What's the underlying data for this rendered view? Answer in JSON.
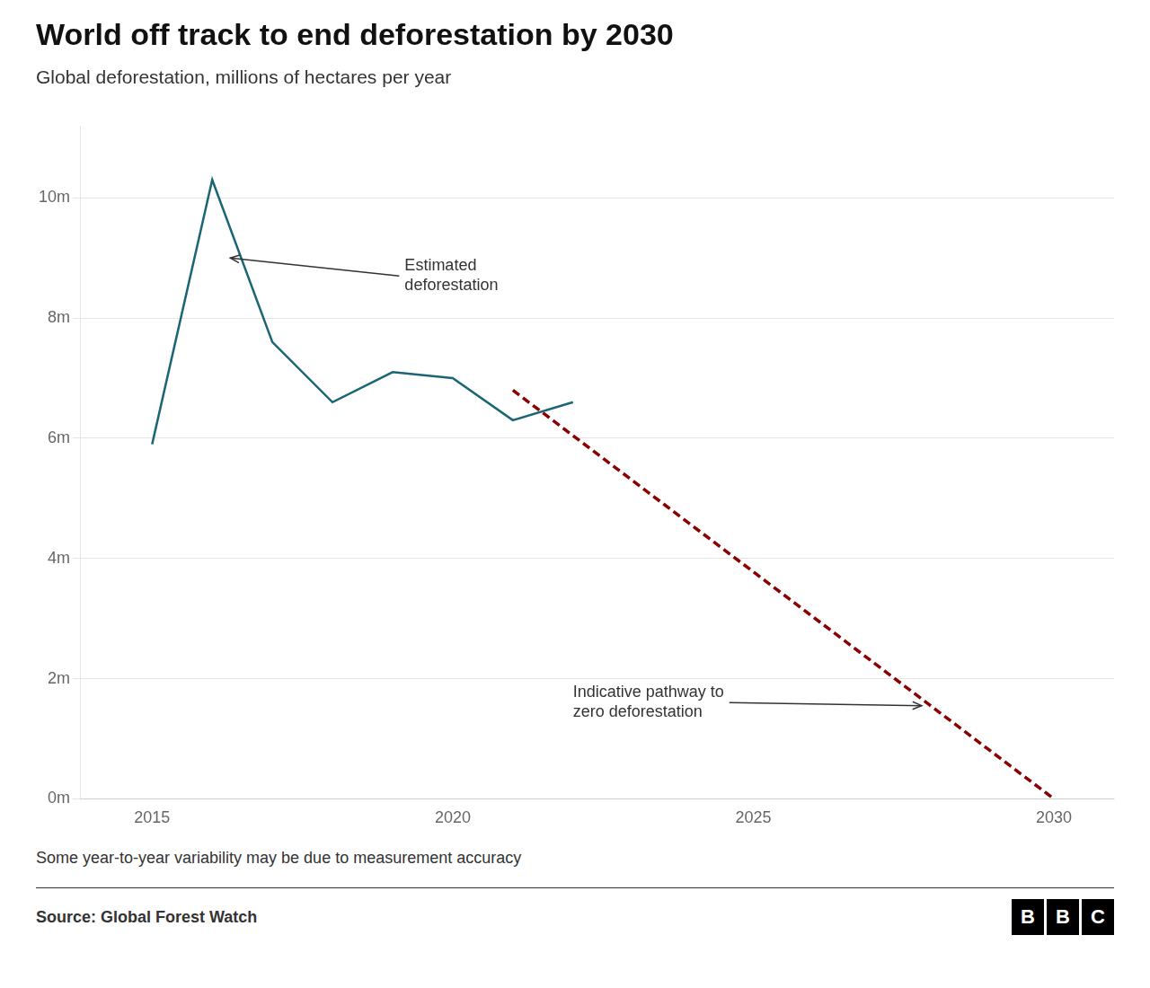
{
  "chart_data": {
    "type": "line",
    "title": "World off track to end deforestation by 2030",
    "subtitle": "Global deforestation, millions of hectares per year",
    "series": [
      {
        "x": [
          2015,
          2016,
          2017,
          2018,
          2019,
          2020,
          2021,
          2022
        ],
        "values": [
          5.9,
          10.3,
          7.6,
          6.6,
          7.1,
          7.0,
          6.3,
          6.6
        ],
        "color": "#1a6674",
        "line_style": "solid",
        "marker": "none"
      },
      {
        "x": [
          2021,
          2030
        ],
        "values": [
          6.8,
          0.0
        ],
        "color": "#8b0000",
        "line_style": "dashed",
        "marker": "none"
      }
    ],
    "xlim": [
      2013.8,
      2031
    ],
    "xticks": [
      2015,
      2020,
      2025,
      2030
    ],
    "ylim": [
      0,
      11.2
    ],
    "yticks": [
      {
        "value": 0,
        "label": "0m"
      },
      {
        "value": 2,
        "label": "2m"
      },
      {
        "value": 4,
        "label": "4m"
      },
      {
        "value": 6,
        "label": "6m"
      },
      {
        "value": 8,
        "label": "8m"
      },
      {
        "value": 10,
        "label": "10m"
      }
    ],
    "grid": "y",
    "annotations": [
      {
        "text": "Estimated\ndeforestation",
        "x": 2016.3,
        "y": 9.0,
        "text_x": 2019.2,
        "text_y": 8.7
      },
      {
        "text": "Indicative pathway to\nzero deforestation",
        "x": 2027.8,
        "y": 1.55,
        "text_x": 2022.0,
        "text_y": 1.6
      }
    ],
    "footnote": "Some year-to-year variability may be due to measurement accuracy",
    "source": "Source: Global Forest Watch",
    "logo": "BBC"
  }
}
